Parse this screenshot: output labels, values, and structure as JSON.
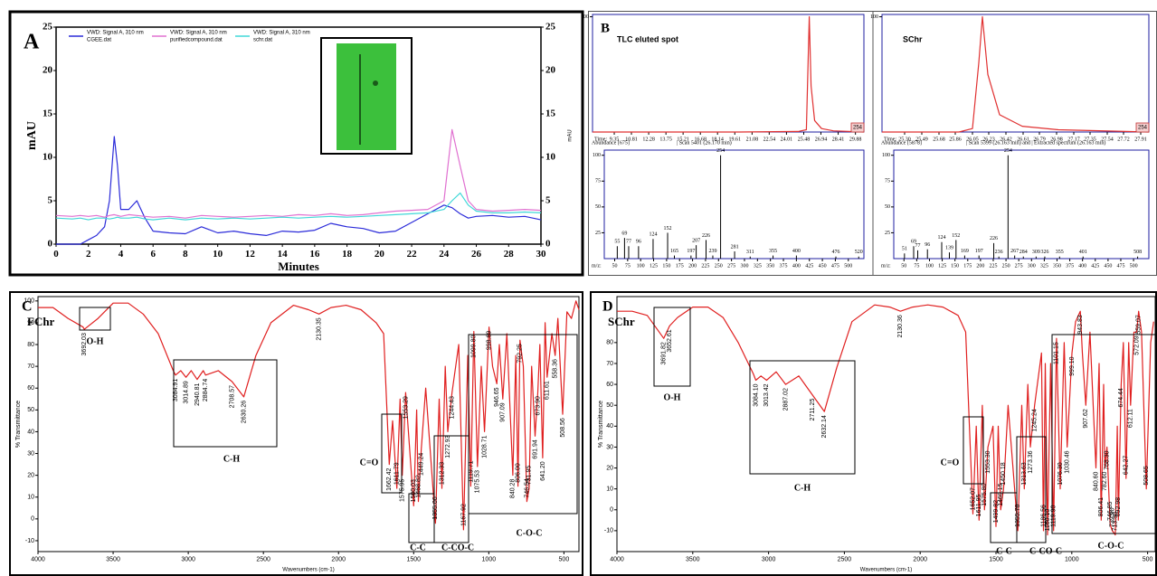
{
  "chart_data": [
    {
      "type": "line",
      "panel": "A",
      "ylabel": "mAU",
      "xlabel": "Minutes",
      "legend_header": "VWD: Signal A, 310 nm",
      "x": [
        0,
        1,
        1.5,
        2,
        2.5,
        3,
        3.3,
        3.6,
        3.8,
        4,
        4.5,
        5,
        5.5,
        6,
        7,
        8,
        9,
        10,
        11,
        12,
        13,
        14,
        15,
        16,
        17,
        18,
        19,
        20,
        21,
        22,
        23,
        24,
        24.5,
        25,
        25.5,
        26,
        27,
        28,
        29,
        30
      ],
      "series": [
        {
          "name": "CGEE.dat",
          "color": "#2b2bd9",
          "values": [
            0,
            0,
            0,
            0.5,
            1,
            2,
            5,
            12.4,
            9,
            4,
            4,
            5,
            3,
            1.5,
            1.3,
            1.2,
            2,
            1.3,
            1.5,
            1.2,
            1,
            1.5,
            1.4,
            1.6,
            2.4,
            2,
            1.8,
            1.3,
            1.5,
            2.5,
            3.5,
            4.5,
            4.2,
            3.5,
            3,
            3.2,
            3.3,
            3.1,
            3.2,
            2.8
          ]
        },
        {
          "name": "purifiedcompound.dat",
          "color": "#e070d0",
          "values": [
            3.3,
            3.2,
            3.3,
            3.2,
            3.3,
            3.1,
            3.3,
            3.4,
            3.3,
            3.2,
            3.4,
            3.3,
            3.2,
            3.1,
            3.2,
            3.0,
            3.3,
            3.2,
            3.1,
            3.2,
            3.3,
            3.2,
            3.4,
            3.3,
            3.5,
            3.3,
            3.4,
            3.6,
            3.8,
            3.9,
            4,
            5,
            13.2,
            9,
            5,
            4,
            3.8,
            3.9,
            4,
            3.9
          ]
        },
        {
          "name": "schr.dat",
          "color": "#40d8d8",
          "values": [
            3,
            2.9,
            3,
            2.8,
            3,
            3,
            2.9,
            3,
            3.1,
            3,
            3,
            3.1,
            2.9,
            2.8,
            3,
            2.8,
            3,
            2.9,
            3,
            2.9,
            3,
            3.1,
            3,
            3.1,
            3.2,
            3.1,
            3.2,
            3.3,
            3.4,
            3.5,
            3.6,
            4,
            5,
            5.9,
            4.5,
            3.8,
            3.6,
            3.6,
            3.7,
            3.6
          ]
        }
      ],
      "xlim": [
        0,
        30
      ],
      "xticks": [
        0,
        2,
        4,
        6,
        8,
        10,
        12,
        14,
        16,
        18,
        20,
        22,
        24,
        26,
        28,
        30
      ],
      "ylim": [
        0,
        25
      ],
      "yticks": [
        0,
        5,
        10,
        15,
        20,
        25
      ],
      "y2lim": [
        0,
        25
      ],
      "y2ticks": [
        0,
        5,
        10,
        15,
        20,
        25
      ]
    },
    {
      "type": "line",
      "panel": "B",
      "title": "TLC eluted spot",
      "xlabel": "Time:",
      "tag": "254",
      "color": "#e03030",
      "x": [
        7.5,
        20,
        25,
        25.7,
        25.95,
        26.1,
        26.4,
        27,
        28,
        30.6
      ],
      "values": [
        0,
        0,
        0.5,
        2,
        100,
        40,
        10,
        3,
        1,
        0
      ],
      "xlim": [
        7.5,
        30.6
      ],
      "xticks": [
        9.35,
        10.81,
        12.28,
        13.75,
        15.21,
        16.68,
        18.14,
        19.61,
        21.08,
        22.54,
        24.01,
        25.48,
        26.94,
        28.41,
        29.88
      ],
      "ylim": [
        0,
        102
      ],
      "yticks": [
        100
      ]
    },
    {
      "type": "line",
      "title": "SChr",
      "xlabel": "Time:",
      "tag": "254",
      "color": "#e03030",
      "x": [
        25.05,
        25.9,
        26.05,
        26.12,
        26.16,
        26.22,
        26.35,
        26.6,
        27,
        28
      ],
      "values": [
        0,
        0,
        3,
        60,
        100,
        50,
        15,
        5,
        2,
        0
      ],
      "xlim": [
        25.05,
        28.0
      ],
      "xticks": [
        {
          "value": 25.3,
          "label": "25.30"
        },
        25.49,
        25.68,
        25.86,
        26.05,
        26.23,
        26.42,
        26.61,
        26.79,
        26.98,
        27.17,
        27.35,
        27.54,
        27.72,
        27.91
      ],
      "ylim": [
        0,
        102
      ],
      "yticks": [
        100
      ]
    },
    {
      "type": "bar",
      "header": "Abundance [675]",
      "subheader": "| Scan 5401 (26.170 min)",
      "xlabel": "m/z:",
      "color": "#000000",
      "x": [
        55,
        69,
        77,
        96,
        124,
        152,
        165,
        197,
        207,
        226,
        239,
        254,
        281,
        311,
        355,
        400,
        476,
        520
      ],
      "values": [
        12,
        20,
        12,
        12,
        19,
        25,
        3,
        3,
        13,
        18,
        3,
        100,
        7,
        2,
        3,
        3,
        2,
        2
      ],
      "xlim": [
        30,
        530
      ],
      "xticks": [
        50,
        75,
        100,
        125,
        150,
        175,
        200,
        225,
        250,
        275,
        300,
        325,
        350,
        375,
        400,
        425,
        450,
        475,
        500
      ],
      "ylim": [
        0,
        105
      ],
      "yticks": [
        25,
        50,
        75,
        100
      ]
    },
    {
      "type": "bar",
      "header": "Abundance [5878]",
      "subheader": "| Scan 5399 (26.163 min) and | Extracted spectrum (26.163 min)",
      "xlabel": "m/z:",
      "color": "#000000",
      "x": [
        51,
        69,
        77,
        96,
        124,
        139,
        152,
        169,
        197,
        226,
        236,
        254,
        267,
        284,
        309,
        326,
        355,
        401,
        508
      ],
      "values": [
        5,
        12,
        8,
        9,
        16,
        6,
        18,
        3,
        3,
        15,
        2,
        100,
        3,
        2,
        2,
        2,
        2,
        2,
        2
      ],
      "xlim": [
        30,
        530
      ],
      "xticks": [
        50,
        75,
        100,
        125,
        150,
        175,
        200,
        225,
        250,
        275,
        300,
        325,
        350,
        375,
        400,
        425,
        450,
        475,
        500
      ],
      "ylim": [
        0,
        105
      ],
      "yticks": [
        25,
        50,
        75,
        100
      ]
    },
    {
      "type": "line",
      "panel": "C",
      "title": "FChr",
      "ylabel": "% Transmittance",
      "xlabel": "Wavenumbers (cm-1)",
      "color": "#e02020",
      "x": [
        4000,
        3900,
        3800,
        3700,
        3692.03,
        3600,
        3500,
        3400,
        3300,
        3200,
        3100,
        3084.91,
        3050,
        3014.89,
        2980,
        2940.81,
        2900,
        2884.74,
        2800,
        2708.57,
        2630.26,
        2550,
        2450,
        2300,
        2200,
        2130.35,
        2050,
        1950,
        1850,
        1750,
        1700,
        1662.42,
        1640,
        1611.79,
        1590,
        1575.95,
        1553.29,
        1500.03,
        1480,
        1468.82,
        1449.24,
        1420,
        1355.06,
        1330,
        1312.33,
        1290,
        1272.93,
        1244.43,
        1200,
        1167.92,
        1140,
        1119.71,
        1099.8,
        1075.53,
        1050,
        1028.71,
        998.69,
        975,
        946.65,
        930,
        907.09,
        880,
        840.28,
        820,
        806,
        792.25,
        770,
        746.54,
        731.95,
        715,
        691.94,
        673.9,
        660,
        641.2,
        625,
        611.61,
        580,
        558.36,
        540,
        508.56,
        480,
        450,
        420,
        400
      ],
      "values": [
        97,
        97,
        92,
        88,
        87,
        92,
        99,
        99,
        94,
        85,
        68,
        66,
        68,
        65,
        68,
        64,
        68,
        66,
        68,
        63,
        56,
        75,
        90,
        98,
        96,
        94,
        97,
        98,
        96,
        90,
        85,
        25,
        45,
        14,
        55,
        20,
        58,
        6,
        50,
        8,
        32,
        60,
        -2,
        55,
        14,
        70,
        40,
        58,
        80,
        -5,
        75,
        15,
        86,
        24,
        70,
        40,
        88,
        70,
        62,
        80,
        55,
        85,
        20,
        75,
        15,
        82,
        70,
        8,
        14,
        70,
        38,
        58,
        80,
        28,
        90,
        65,
        85,
        75,
        92,
        48,
        95,
        92,
        100,
        96
      ],
      "xlim": [
        4000,
        400
      ],
      "xticks": [
        4000,
        3500,
        3000,
        2500,
        2000,
        1500,
        1000,
        500
      ],
      "ylim": [
        -15,
        102
      ],
      "yticks": [
        -10,
        0,
        10,
        20,
        30,
        40,
        50,
        60,
        70,
        80,
        90,
        100
      ],
      "peak_labels": [
        "3692.03",
        "3084.91",
        "3014.89",
        "2940.81",
        "2884.74",
        "2708.57",
        "2630.26",
        "2130.35",
        "1662.42",
        "1611.79",
        "1575.95",
        "1553.29",
        "1500.03",
        "1468.82",
        "1449.24",
        "1355.06",
        "1312.33",
        "1272.93",
        "1244.43",
        "1167.92",
        "1119.71",
        "1099.80",
        "1075.53",
        "1028.71",
        "998.69",
        "946.65",
        "907.09",
        "840.28",
        "806.00",
        "792.25",
        "746.54",
        "731.95",
        "691.94",
        "673.90",
        "641.20",
        "611.61",
        "558.36",
        "508.56"
      ],
      "peak_x": [
        3692.03,
        3084.91,
        3014.89,
        2940.81,
        2884.74,
        2708.57,
        2630.26,
        2130.35,
        1662.42,
        1611.79,
        1575.95,
        1553.29,
        1500.03,
        1468.82,
        1449.24,
        1355.06,
        1312.33,
        1272.93,
        1244.43,
        1167.92,
        1119.71,
        1099.8,
        1075.53,
        1028.71,
        998.69,
        946.65,
        907.09,
        840.28,
        806,
        792.25,
        746.54,
        731.95,
        691.94,
        673.9,
        641.2,
        611.61,
        558.36,
        508.56
      ],
      "groups": [
        "O-H",
        "C-H",
        "C=O",
        "C-C",
        "C-CO-C",
        "C-O-C"
      ]
    },
    {
      "type": "line",
      "panel": "D",
      "title": "SChr",
      "ylabel": "% Transmittance",
      "xlabel": "Wavenumbers (cm-1)",
      "color": "#e02020",
      "x": [
        4000,
        3900,
        3800,
        3691.82,
        3652.61,
        3600,
        3500,
        3400,
        3300,
        3200,
        3100,
        3084.1,
        3050,
        3013.42,
        2950,
        2887.02,
        2800,
        2711.25,
        2632.14,
        2550,
        2450,
        2300,
        2200,
        2130.36,
        2050,
        1950,
        1850,
        1750,
        1700,
        1652.07,
        1630,
        1611.95,
        1590,
        1575.8,
        1553.3,
        1520,
        1499.82,
        1485,
        1469.15,
        1450.18,
        1420,
        1355.78,
        1330,
        1313.63,
        1290,
        1273.36,
        1245.24,
        1200,
        1186.56,
        1175,
        1160.1,
        1140,
        1119.9,
        1101.15,
        1076.3,
        1050,
        1030.46,
        999.1,
        975,
        943.83,
        930,
        907.62,
        880,
        840.6,
        820,
        806.41,
        790,
        782.6,
        768.3,
        746.85,
        732.9,
        713.36,
        700,
        692.98,
        674.44,
        660,
        642.27,
        625,
        612.11,
        590,
        572.09,
        559.07,
        540,
        508.65,
        480,
        460
      ],
      "values": [
        95,
        95,
        93,
        82,
        88,
        92,
        97,
        97,
        92,
        80,
        65,
        62,
        64,
        62,
        66,
        60,
        64,
        55,
        47,
        68,
        90,
        98,
        97,
        95,
        97,
        98,
        97,
        93,
        85,
        -2,
        40,
        -5,
        50,
        0,
        30,
        40,
        -8,
        40,
        0,
        10,
        50,
        -10,
        50,
        10,
        60,
        30,
        50,
        75,
        -10,
        70,
        -12,
        70,
        -10,
        82,
        10,
        80,
        30,
        75,
        90,
        95,
        75,
        50,
        85,
        20,
        70,
        -5,
        60,
        20,
        30,
        -7,
        -10,
        -12,
        40,
        -5,
        60,
        80,
        15,
        80,
        50,
        85,
        85,
        95,
        85,
        10,
        80,
        90
      ],
      "xlim": [
        4000,
        450
      ],
      "xticks": [
        4000,
        3500,
        3000,
        2500,
        2000,
        1500,
        1000,
        500
      ],
      "ylim": [
        -20,
        102
      ],
      "yticks": [
        -10,
        0,
        10,
        20,
        30,
        40,
        50,
        60,
        70,
        80
      ],
      "peak_labels": [
        "3691.82",
        "3652.61",
        "3084.10",
        "3013.42",
        "2887.02",
        "2711.25",
        "2632.14",
        "2130.36",
        "1652.07",
        "1611.95",
        "1575.80",
        "1553.30",
        "1499.82",
        "1469.15",
        "1450.18",
        "1355.78",
        "1313.63",
        "1273.36",
        "1245.24",
        "1186.56",
        "1160.10",
        "1119.90",
        "1101.15",
        "1076.30",
        "1030.46",
        "999.10",
        "943.83",
        "907.62",
        "840.60",
        "806.41",
        "782.60",
        "768.30",
        "746.85",
        "732.90",
        "713.36",
        "692.98",
        "674.44",
        "642.27",
        "612.11",
        "572.09",
        "559.07",
        "508.65"
      ],
      "peak_x": [
        3691.82,
        3652.61,
        3084.1,
        3013.42,
        2887.02,
        2711.25,
        2632.14,
        2130.36,
        1652.07,
        1611.95,
        1575.8,
        1553.3,
        1499.82,
        1469.15,
        1450.18,
        1355.78,
        1313.63,
        1273.36,
        1245.24,
        1186.56,
        1160.1,
        1119.9,
        1101.15,
        1076.3,
        1030.46,
        999.1,
        943.83,
        907.62,
        840.6,
        806.41,
        782.6,
        768.3,
        746.85,
        732.9,
        713.36,
        692.98,
        674.44,
        642.27,
        612.11,
        572.09,
        559.07,
        508.65
      ],
      "groups": [
        "O-H",
        "C-H",
        "C=O",
        "C-C",
        "C-CO-C",
        "C-O-C"
      ]
    }
  ]
}
